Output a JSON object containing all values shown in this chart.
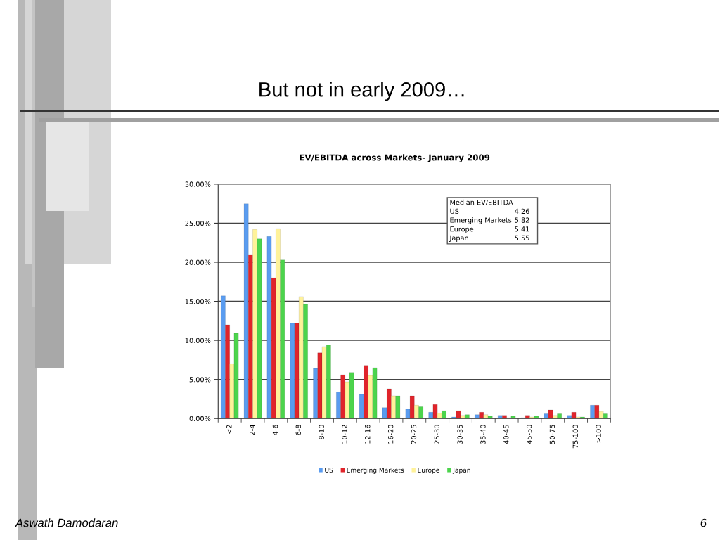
{
  "chart_data": {
    "type": "bar",
    "title": "But not in early 2009…",
    "subtitle": "EV/EBITDA across Markets- January 2009",
    "categories": [
      "<2",
      "2-4",
      "4-6",
      "6-8",
      "8-10",
      "10-12",
      "12-16",
      "16-20",
      "20-25",
      "25-30",
      "30-35",
      "35-40",
      "40-45",
      "45-50",
      "50-75",
      "75-100",
      ">100"
    ],
    "series": [
      {
        "name": "US",
        "color": "#5a9cf0",
        "values": [
          15.7,
          27.5,
          23.3,
          12.2,
          6.4,
          3.4,
          3.1,
          1.4,
          1.2,
          0.8,
          0.2,
          0.5,
          0.4,
          0.1,
          0.6,
          0.4,
          1.7
        ]
      },
      {
        "name": "Emerging Markets",
        "color": "#e0242b",
        "values": [
          12.0,
          21.0,
          18.0,
          12.2,
          8.4,
          5.6,
          6.8,
          3.8,
          2.9,
          1.8,
          1.0,
          0.8,
          0.4,
          0.4,
          1.1,
          0.8,
          1.7
        ]
      },
      {
        "name": "Europe",
        "color": "#fff29a",
        "values": [
          7.0,
          24.2,
          24.3,
          15.6,
          9.2,
          4.7,
          5.5,
          2.9,
          1.7,
          0.7,
          0.4,
          0.5,
          0.1,
          0.2,
          0.4,
          0.2,
          0.9
        ]
      },
      {
        "name": "Japan",
        "color": "#4cd44c",
        "values": [
          10.9,
          23.0,
          20.3,
          14.6,
          9.4,
          5.9,
          6.5,
          2.9,
          1.5,
          1.0,
          0.5,
          0.3,
          0.3,
          0.3,
          0.6,
          0.2,
          0.6
        ]
      }
    ],
    "ylim": [
      0,
      30
    ],
    "yticks": [
      {
        "value": 0,
        "label": "0.00%"
      },
      {
        "value": 5,
        "label": "5.00%"
      },
      {
        "value": 10,
        "label": "10.00%"
      },
      {
        "value": 15,
        "label": "15.00%"
      },
      {
        "value": 20,
        "label": "20.00%"
      },
      {
        "value": 25,
        "label": "25.00%"
      },
      {
        "value": 30,
        "label": "30.00%"
      }
    ],
    "grid": "y",
    "legend": "bottom",
    "annotations": [
      "Median EV/EBITDA\nUS 4.26\nEmerging Markets 5.82\nEurope 5.41\nJapan 5.55",
      "Aswath Damodaran",
      "6"
    ]
  }
}
